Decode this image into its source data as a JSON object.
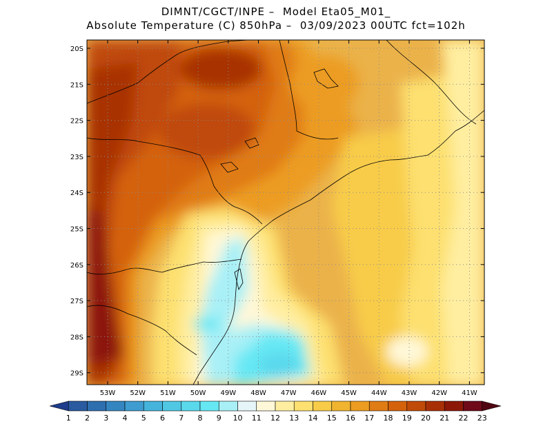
{
  "header": {
    "title_line1": "DIMNT/CGCT/INPE –  Model Eta05_M01_",
    "title_line2": "Absolute Temperature (C) 850hPa –  03/09/2023 00UTC fct=102h"
  },
  "map": {
    "lat_labels": [
      "20S",
      "21S",
      "22S",
      "23S",
      "24S",
      "25S",
      "26S",
      "27S",
      "28S",
      "29S"
    ],
    "lon_labels": [
      "53W",
      "52W",
      "51W",
      "50W",
      "49W",
      "48W",
      "47W",
      "46W",
      "45W",
      "44W",
      "43W",
      "42W",
      "41W"
    ],
    "background_color": "#ebb24a"
  },
  "colorbar": {
    "values": [
      "1",
      "2",
      "3",
      "4",
      "5",
      "6",
      "7",
      "8",
      "9",
      "10",
      "11",
      "12",
      "13",
      "14",
      "15",
      "16",
      "17",
      "18",
      "19",
      "20",
      "21",
      "22",
      "23"
    ],
    "colors": [
      "#1e3c8c",
      "#2a5aa0",
      "#2e6fb0",
      "#3586c0",
      "#3e9cd0",
      "#45b4dc",
      "#50c8e4",
      "#5ad8ec",
      "#66e8f4",
      "#a8f0f6",
      "#e6f6f8",
      "#fff8d8",
      "#ffeea0",
      "#fde070",
      "#f8cc48",
      "#f0b430",
      "#ec9c20",
      "#e07c14",
      "#d4620c",
      "#c04a08",
      "#a83006",
      "#8c1808",
      "#6e0a1a",
      "#500612"
    ]
  }
}
